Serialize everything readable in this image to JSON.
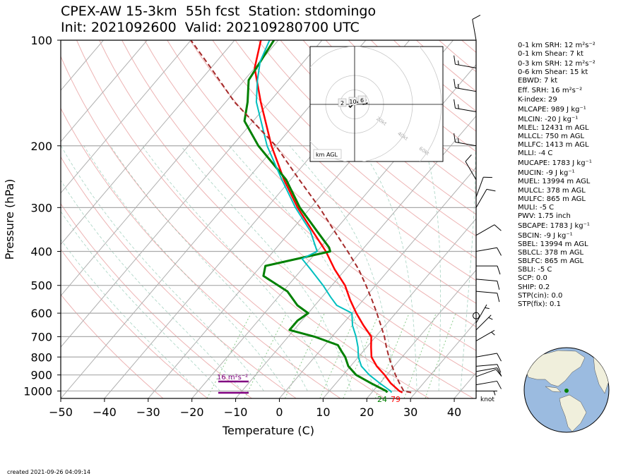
{
  "header": {
    "title_line1": "CPEX-AW 15-3km  55h fcst  Station: stdomingo",
    "title_line2": "Init: 2021092600  Valid: 2021092807 00 UTC"
  },
  "indices": [
    "0-1 km SRH: 12 m²s⁻²",
    "0-1 km Shear: 7 kt",
    "0-3 km SRH: 12 m²s⁻²",
    "0-6 km Shear: 15 kt",
    "EBWD: 7 kt",
    "Eff. SRH: 16 m²s⁻²",
    "K-index: 29",
    "MLCAPE: 989 J kg⁻¹",
    "MLCIN: -20 J kg⁻¹",
    "MLEL: 12431 m AGL",
    "MLLCL: 750 m AGL",
    "MLLFC: 1413 m AGL",
    "MLLI: -4 C",
    "MUCAPE: 1783 J kg⁻¹",
    "MUCIN: -9 J kg⁻¹",
    "MUEL: 13994 m AGL",
    "MULCL: 378 m AGL",
    "MULFC: 865 m AGL",
    "MULI: -5 C",
    "PWV: 1.75 inch",
    "SBCAPE: 1783 J kg⁻¹",
    "SBCIN: -9 J kg⁻¹",
    "SBEL: 13994 m AGL",
    "SBLCL: 378 m AGL",
    "SBLFC: 865 m AGL",
    "SBLI: -5 C",
    "SCP: 0.0",
    "SHIP: 0.2",
    "STP(cin): 0.0",
    "STP(fix): 0.1"
  ],
  "footer": {
    "created": "created 2021-09-26 04:09:14"
  },
  "colors": {
    "temperature": "#ff0000",
    "dewpoint": "#008000",
    "wetbulb": "#00bfbf",
    "parcel": "#a52a2a",
    "srh": "#800080",
    "ocean": "#9bbbe0",
    "land": "#f0efdc"
  },
  "chart_data": [
    {
      "type": "line",
      "subtype": "skew-T log-P",
      "xlabel": "Temperature (C)",
      "ylabel": "Pressure (hPa)",
      "xlim": [
        -50,
        45
      ],
      "ylim": [
        1050,
        100
      ],
      "y_scale": "log",
      "x_ticks": [
        -50,
        -40,
        -30,
        -20,
        -10,
        0,
        10,
        20,
        30,
        40
      ],
      "y_ticks": [
        100,
        200,
        300,
        400,
        500,
        600,
        700,
        800,
        900,
        1000
      ],
      "grid": true,
      "series": [
        {
          "key": "temperature",
          "p": [
            1010,
            1000,
            950,
            900,
            850,
            800,
            750,
            700,
            650,
            600,
            550,
            500,
            450,
            400,
            350,
            300,
            250,
            200,
            150,
            120,
            100
          ],
          "t": [
            27,
            26,
            22.5,
            19.5,
            16,
            13,
            11,
            9,
            5,
            1,
            -3,
            -7,
            -12.5,
            -18,
            -25,
            -33,
            -41.5,
            -51,
            -62,
            -70,
            -74
          ]
        },
        {
          "key": "dewpoint",
          "p": [
            1010,
            1000,
            950,
            900,
            850,
            800,
            770,
            740,
            700,
            670,
            630,
            600,
            570,
            520,
            470,
            440,
            400,
            390,
            350,
            300,
            250,
            200,
            170,
            150,
            130,
            100
          ],
          "t": [
            23.5,
            23,
            18,
            13,
            9.5,
            7,
            5,
            3,
            -4,
            -11,
            -11,
            -10,
            -14,
            -19,
            -27.5,
            -29,
            -17,
            -18,
            -24,
            -32.5,
            -41,
            -54,
            -62,
            -65,
            -69,
            -71
          ]
        },
        {
          "key": "wetbulb",
          "p": [
            1010,
            1000,
            950,
            900,
            850,
            800,
            750,
            700,
            650,
            600,
            570,
            540,
            500,
            450,
            420,
            400,
            350,
            300,
            250,
            200,
            150,
            130,
            115,
            100
          ],
          "t": [
            24.5,
            24,
            20,
            16,
            12.5,
            10,
            8,
            5.5,
            2.5,
            0,
            -5,
            -8,
            -12,
            -18,
            -22,
            -20,
            -25.5,
            -33.5,
            -42,
            -52,
            -63,
            -67,
            -70,
            -72
          ]
        },
        {
          "key": "parcel",
          "dashed": true,
          "p": [
            1010,
            1000,
            950,
            900,
            850,
            800,
            750,
            700,
            650,
            600,
            550,
            500,
            450,
            400,
            350,
            300,
            250,
            200,
            150,
            120,
            100
          ],
          "t": [
            29,
            27,
            24.5,
            22,
            19.5,
            17,
            14.5,
            12,
            9,
            5.7,
            2,
            -2.2,
            -7,
            -13,
            -20,
            -28,
            -38,
            -50,
            -68,
            -80,
            -90
          ]
        }
      ],
      "annotations": {
        "bottom_dewpoint": "24",
        "bottom_temperature": "79",
        "srh_label": "16 m²s⁻²",
        "wind_unit": "knot"
      },
      "wind_barbs": [
        {
          "p": 1000,
          "speed_kt": 5,
          "direction_deg": 90
        },
        {
          "p": 960,
          "speed_kt": 10,
          "direction_deg": 80
        },
        {
          "p": 910,
          "speed_kt": 10,
          "direction_deg": 70
        },
        {
          "p": 880,
          "speed_kt": 10,
          "direction_deg": 80
        },
        {
          "p": 850,
          "speed_kt": 10,
          "direction_deg": 85
        },
        {
          "p": 800,
          "speed_kt": 10,
          "direction_deg": 80
        },
        {
          "p": 720,
          "speed_kt": 5,
          "direction_deg": 60
        },
        {
          "p": 670,
          "speed_kt": 5,
          "direction_deg": 45
        },
        {
          "p": 640,
          "speed_kt": 5,
          "direction_deg": 30
        },
        {
          "p": 610,
          "speed_kt": 0,
          "direction_deg": 0
        },
        {
          "p": 520,
          "speed_kt": 10,
          "direction_deg": 95
        },
        {
          "p": 480,
          "speed_kt": 10,
          "direction_deg": 95
        },
        {
          "p": 440,
          "speed_kt": 10,
          "direction_deg": 90
        },
        {
          "p": 400,
          "speed_kt": 10,
          "direction_deg": 80
        },
        {
          "p": 360,
          "speed_kt": 10,
          "direction_deg": 60
        },
        {
          "p": 300,
          "speed_kt": 10,
          "direction_deg": 30
        },
        {
          "p": 280,
          "speed_kt": 10,
          "direction_deg": 20
        },
        {
          "p": 250,
          "speed_kt": 10,
          "direction_deg": 330
        },
        {
          "p": 200,
          "speed_kt": 15,
          "direction_deg": 280
        },
        {
          "p": 160,
          "speed_kt": 15,
          "direction_deg": 280
        },
        {
          "p": 140,
          "speed_kt": 15,
          "direction_deg": 280
        },
        {
          "p": 120,
          "speed_kt": 15,
          "direction_deg": 280
        },
        {
          "p": 100,
          "speed_kt": 10,
          "direction_deg": 350
        }
      ]
    },
    {
      "type": "line",
      "subtype": "hodograph",
      "rings_kt": [
        10,
        20,
        40,
        60,
        80
      ],
      "ring_labels": [
        "20kt",
        "40kt",
        "60kt",
        "80kt"
      ],
      "height_labels": [
        "2",
        "10",
        "6"
      ],
      "legend": "km AGL",
      "points_kt": [
        [
          -4,
          -1
        ],
        [
          -3,
          -2
        ],
        [
          -1,
          0
        ],
        [
          1,
          2
        ],
        [
          3,
          1
        ],
        [
          6,
          2
        ],
        [
          8,
          3
        ],
        [
          7,
          3
        ],
        [
          5,
          2
        ],
        [
          6,
          0
        ],
        [
          9,
          1
        ]
      ]
    }
  ]
}
